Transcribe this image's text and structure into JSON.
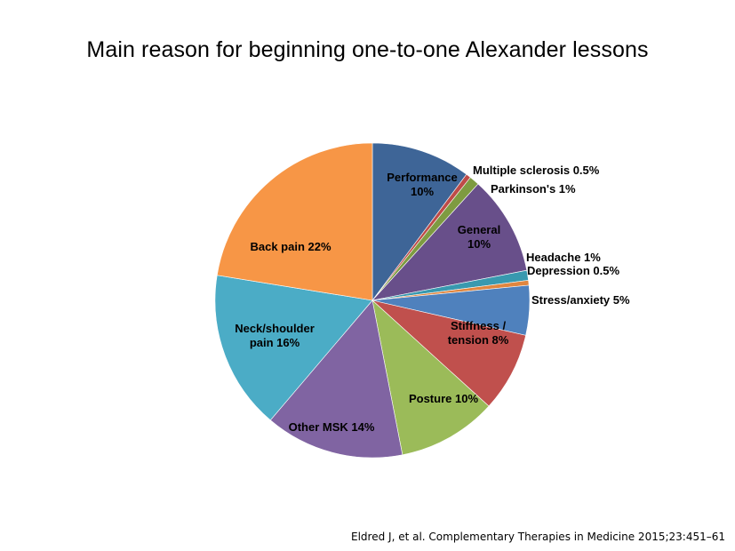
{
  "title": "Main reason for beginning one-to-one Alexander lessons",
  "citation": "Eldred J, et al. Complementary Therapies in Medicine 2015;23:451–61",
  "chart_data": {
    "type": "pie",
    "unit": "%",
    "start_angle_deg": 0,
    "direction": "clockwise",
    "slices": [
      {
        "name": "Performance",
        "value": 10,
        "color": "#3E6597",
        "label_lines": [
          "Performance",
          "10%"
        ]
      },
      {
        "name": "Multiple sclerosis",
        "value": 0.5,
        "color": "#BE4B48",
        "label_lines": [
          "Multiple sclerosis 0.5%"
        ]
      },
      {
        "name": "Parkinson's",
        "value": 1,
        "color": "#7E9B41",
        "label_lines": [
          "Parkinson's 1%"
        ]
      },
      {
        "name": "General",
        "value": 10,
        "color": "#684F8A",
        "label_lines": [
          "General",
          "10%"
        ]
      },
      {
        "name": "Headache",
        "value": 1,
        "color": "#3899AF",
        "label_lines": [
          "Headache 1%"
        ]
      },
      {
        "name": "Depression",
        "value": 0.5,
        "color": "#E0863F",
        "label_lines": [
          "Depression 0.5%"
        ]
      },
      {
        "name": "Stress/anxiety",
        "value": 5,
        "color": "#4F81BD",
        "label_lines": [
          "Stress/anxiety 5%"
        ]
      },
      {
        "name": "Stiffness / tension",
        "value": 8,
        "color": "#C0504D",
        "label_lines": [
          "Stiffness /",
          "tension 8%"
        ]
      },
      {
        "name": "Posture",
        "value": 10,
        "color": "#9BBB59",
        "label_lines": [
          "Posture 10%"
        ]
      },
      {
        "name": "Other MSK",
        "value": 14,
        "color": "#8064A2",
        "label_lines": [
          "Other MSK 14%"
        ]
      },
      {
        "name": "Neck/shoulder pain",
        "value": 16,
        "color": "#4BACC6",
        "label_lines": [
          "Neck/shoulder",
          "pain 16%"
        ]
      },
      {
        "name": "Back pain",
        "value": 22,
        "color": "#F79646",
        "label_lines": [
          "Back pain 22%"
        ]
      }
    ]
  }
}
